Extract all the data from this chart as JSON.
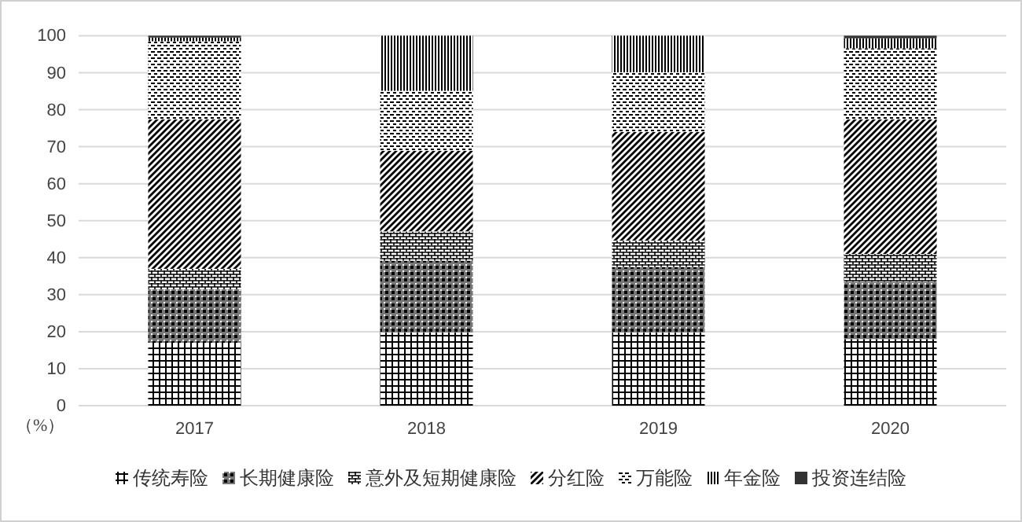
{
  "chart_data": {
    "type": "bar",
    "stacked": true,
    "ylabel": "（%）",
    "categories": [
      "2017",
      "2018",
      "2019",
      "2020"
    ],
    "series": [
      {
        "name": "传统寿险",
        "color": "#000000",
        "values": [
          17,
          19.8,
          19.8,
          18
        ]
      },
      {
        "name": "长期健康险",
        "color": "#000000",
        "values": [
          14.4,
          19.4,
          17.7,
          15.5
        ]
      },
      {
        "name": "意外及短期健康险",
        "color": "#000000",
        "values": [
          5.6,
          7.9,
          7.1,
          7.5
        ]
      },
      {
        "name": "分红险",
        "color": "#000000",
        "values": [
          40.4,
          21.8,
          29.4,
          36.4
        ]
      },
      {
        "name": "万能险",
        "color": "#000000",
        "values": [
          21.1,
          16.2,
          16.1,
          19.2
        ]
      },
      {
        "name": "年金险",
        "color": "#000000",
        "values": [
          1,
          14.9,
          9.9,
          2.7
        ]
      },
      {
        "name": "投资连结险",
        "color": "#000000",
        "values": [
          0.5,
          0,
          0,
          0.7
        ]
      }
    ],
    "ylim": [
      0,
      100
    ],
    "yticks": [
      0,
      10,
      20,
      30,
      40,
      50,
      60,
      70,
      80,
      90,
      100
    ],
    "grid": "y",
    "legend": "bottom"
  }
}
